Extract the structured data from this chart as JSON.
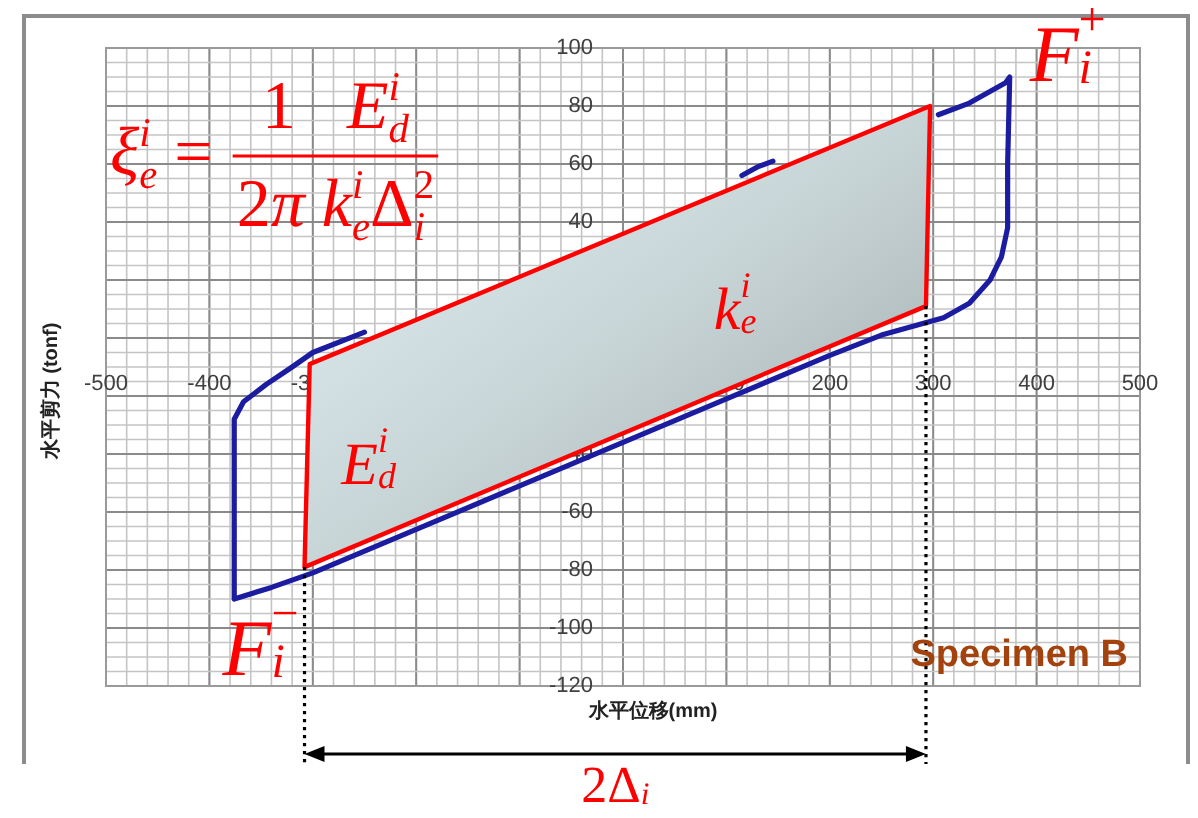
{
  "chart_data": {
    "type": "line",
    "title": "Specimen B",
    "xlabel": "水平位移(mm)",
    "ylabel": "水平剪力 (tonf)",
    "xlim": [
      -500,
      500
    ],
    "ylim": [
      -120,
      100
    ],
    "xticks": [
      -500,
      -400,
      -300,
      {
        "value": -200,
        "label": null
      },
      {
        "value": -100,
        "label": null
      },
      {
        "value": 0,
        "label": null
      },
      100,
      200,
      300,
      400,
      500
    ],
    "yticks": [
      100,
      80,
      60,
      40,
      {
        "value": 20,
        "label": null
      },
      {
        "value": 0,
        "label": null
      },
      {
        "value": -20,
        "label": null
      },
      -40,
      -60,
      -80,
      -100,
      -120
    ],
    "grid": true,
    "series": [
      {
        "color": "#1c1ca0",
        "x": [
          305,
          335,
          370,
          374,
          372,
          372,
          366,
          355,
          335,
          310,
          290,
          250,
          200,
          100,
          0,
          -100,
          -200,
          -300,
          -340,
          -376,
          -376,
          -376,
          -367,
          -345,
          -320,
          -300,
          -250
        ],
        "values": [
          77,
          81,
          88,
          90,
          60,
          38,
          28,
          20,
          12,
          7,
          5,
          1,
          -6,
          -21,
          -36,
          -51,
          -66,
          -81,
          -86,
          -90,
          -60,
          -28,
          -22,
          -16,
          -10,
          -5,
          2
        ]
      },
      {
        "color": "#1c1ca0",
        "x": [
          115,
          130,
          145
        ],
        "values": [
          56,
          59,
          61
        ]
      },
      {
        "type": "area",
        "color": "#ff0000",
        "x": [
          -303,
          297,
          293,
          -308
        ],
        "values": [
          -9,
          80,
          11,
          -79
        ]
      }
    ],
    "ref_lines": [
      {
        "axis": "x",
        "value": -308,
        "color": "#000000",
        "line_style": "dotted"
      },
      {
        "axis": "x",
        "value": 293,
        "color": "#000000",
        "line_style": "dotted"
      }
    ],
    "annotations": [
      "ξ$_{e}$$^{i}$ =",
      "1   E$_{d}$$^{i}$",
      "2π k$_{e}$$^{i}$Δ$_{i}$$^{2}$",
      {
        "text": "F$_{i}$$^{+}$",
        "x": 374,
        "y": 90
      },
      "k$_{e}$$^{i}$",
      "E$_{d}$$^{i}$",
      {
        "text": "F$_{i}$$^{−}$",
        "x": -308,
        "y": -79
      },
      "2Δ$_{i}$"
    ]
  }
}
